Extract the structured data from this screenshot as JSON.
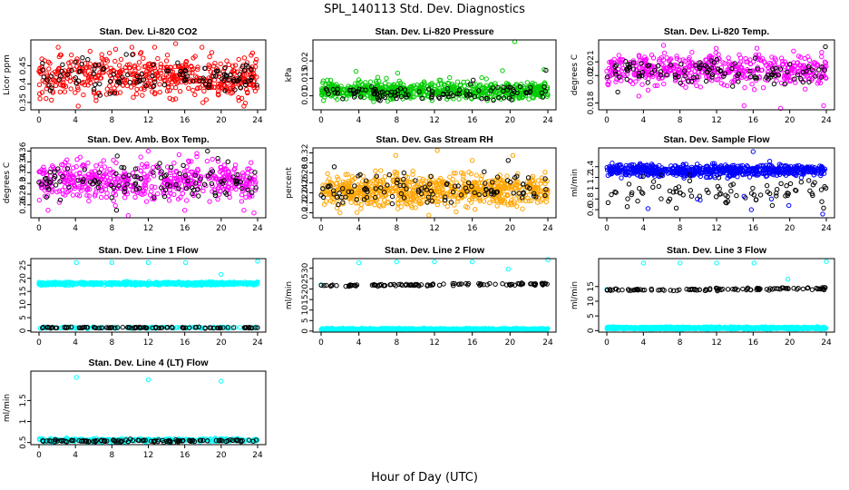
{
  "figure": {
    "title": "SPL_140113  Std. Dev. Diagnostics",
    "x_axis_label": "Hour of Day (UTC)"
  },
  "colors": {
    "red": "#ff0000",
    "green": "#00cc00",
    "magenta": "#ff00ff",
    "orange": "#ffa500",
    "blue": "#0000ff",
    "cyan": "#00ffff",
    "black": "#000000"
  },
  "chart_data": [
    {
      "type": "scatter",
      "title": "Stan. Dev. Li-820 CO2",
      "ylabel": "Licor ppm",
      "xlim": [
        0,
        24
      ],
      "xticks": [
        0,
        4,
        8,
        12,
        16,
        20,
        24
      ],
      "ylim": [
        0.33,
        0.52
      ],
      "yticks": [
        0.35,
        0.4,
        0.45
      ],
      "series": [
        {
          "color": "red",
          "cloud": {
            "count": 520,
            "center": 0.42,
            "spread": 0.035
          },
          "points": [
            [
              2.1,
              0.5
            ],
            [
              4.3,
              0.34
            ],
            [
              10.2,
              0.5
            ],
            [
              12.7,
              0.5
            ],
            [
              15.0,
              0.51
            ],
            [
              17.9,
              0.5
            ],
            [
              22.5,
              0.34
            ]
          ]
        },
        {
          "color": "black",
          "cloud": {
            "count": 110,
            "center": 0.42,
            "spread": 0.03
          }
        }
      ]
    },
    {
      "type": "scatter",
      "title": "Stan. Dev. Li-820 Pressure",
      "ylabel": "kPa",
      "xlim": [
        0,
        24
      ],
      "xticks": [
        0,
        4,
        8,
        12,
        16,
        20,
        24
      ],
      "ylim": [
        0.006,
        0.026
      ],
      "yticks": [
        0.01,
        0.015,
        0.02
      ],
      "series": [
        {
          "color": "green",
          "cloud": {
            "count": 650,
            "center": 0.0115,
            "spread": 0.0015
          },
          "points": [
            [
              1.0,
              0.0145
            ],
            [
              3.7,
              0.017
            ],
            [
              8.1,
              0.0165
            ],
            [
              12.5,
              0.0145
            ],
            [
              13.6,
              0.0152
            ],
            [
              19.2,
              0.0172
            ],
            [
              20.5,
              0.0255
            ],
            [
              23.6,
              0.0175
            ],
            [
              6.0,
              0.0153
            ],
            [
              17.0,
              0.0152
            ]
          ]
        },
        {
          "color": "black",
          "cloud": {
            "count": 110,
            "center": 0.011,
            "spread": 0.0012
          },
          "points": [
            [
              23.8,
              0.0173
            ],
            [
              16.1,
              0.0145
            ]
          ]
        }
      ]
    },
    {
      "type": "scatter",
      "title": "Stan. Dev. Li-820 Temp.",
      "ylabel": "degrees C",
      "xlim": [
        0,
        24
      ],
      "xticks": [
        0,
        4,
        8,
        12,
        16,
        20,
        24
      ],
      "ylim": [
        0.0175,
        0.0226
      ],
      "yticks": [
        0.018,
        0.02,
        0.021
      ],
      "series": [
        {
          "color": "magenta",
          "cloud": {
            "count": 520,
            "center": 0.0204,
            "spread": 0.0007
          },
          "points": [
            [
              6.2,
              0.0222
            ],
            [
              9.3,
              0.0217
            ],
            [
              15.0,
              0.0178
            ],
            [
              19.0,
              0.0176
            ],
            [
              23.7,
              0.0178
            ],
            [
              3.5,
              0.0185
            ]
          ]
        },
        {
          "color": "black",
          "cloud": {
            "count": 110,
            "center": 0.0203,
            "spread": 0.0006
          },
          "points": [
            [
              23.9,
              0.0221
            ],
            [
              1.2,
              0.0188
            ]
          ]
        }
      ]
    },
    {
      "type": "scatter",
      "title": "Stan. Dev. Amb. Box Temp.",
      "ylabel": "degrees C",
      "xlim": [
        0,
        24
      ],
      "xticks": [
        0,
        4,
        8,
        12,
        16,
        20,
        24
      ],
      "ylim": [
        0.236,
        0.366
      ],
      "yticks": [
        0.26,
        0.28,
        0.3,
        0.32,
        0.34,
        0.36
      ],
      "series": [
        {
          "color": "magenta",
          "cloud": {
            "count": 520,
            "center": 0.305,
            "spread": 0.022
          },
          "points": [
            [
              1.0,
              0.25
            ],
            [
              9.8,
              0.24
            ],
            [
              12.0,
              0.36
            ],
            [
              16.0,
              0.25
            ],
            [
              22.5,
              0.25
            ],
            [
              23.6,
              0.245
            ]
          ]
        },
        {
          "color": "black",
          "cloud": {
            "count": 110,
            "center": 0.303,
            "spread": 0.02
          },
          "points": [
            [
              8.5,
              0.25
            ],
            [
              18.5,
              0.36
            ]
          ]
        }
      ]
    },
    {
      "type": "scatter",
      "title": "Stan. Dev. Gas Stream RH",
      "ylabel": "percent",
      "xlim": [
        0,
        24
      ],
      "xticks": [
        0,
        4,
        8,
        12,
        16,
        20,
        24
      ],
      "ylim": [
        0.19,
        0.33
      ],
      "yticks": [
        0.2,
        0.22,
        0.24,
        0.26,
        0.28,
        0.3,
        0.32
      ],
      "series": [
        {
          "color": "orange",
          "cloud": {
            "count": 700,
            "center": 0.245,
            "spread": 0.02
          },
          "points": [
            [
              7.9,
              0.315
            ],
            [
              12.3,
              0.325
            ],
            [
              16.0,
              0.305
            ],
            [
              20.3,
              0.315
            ],
            [
              2.0,
              0.2
            ],
            [
              11.4,
              0.195
            ]
          ]
        },
        {
          "color": "black",
          "cloud": {
            "count": 110,
            "center": 0.25,
            "spread": 0.018
          },
          "points": [
            [
              19.8,
              0.305
            ],
            [
              23.7,
              0.235
            ]
          ]
        }
      ]
    },
    {
      "type": "scatter",
      "title": "Stan. Dev. Sample Flow",
      "ylabel": "ml/min",
      "xlim": [
        0,
        24
      ],
      "xticks": [
        0,
        4,
        8,
        12,
        16,
        20,
        24
      ],
      "ylim": [
        0.45,
        1.75
      ],
      "yticks": [
        0.6,
        0.8,
        1.0,
        1.2,
        1.4
      ],
      "series": [
        {
          "color": "blue",
          "cloud": {
            "count": 700,
            "center": 1.33,
            "spread": 0.07
          },
          "points": [
            [
              4.5,
              0.62
            ],
            [
              10.2,
              0.78
            ],
            [
              15.8,
              0.6
            ],
            [
              16.0,
              1.68
            ],
            [
              23.6,
              0.52
            ],
            [
              9.9,
              0.8
            ],
            [
              15.0,
              0.85
            ],
            [
              19.9,
              0.68
            ],
            [
              18.0,
              0.8
            ]
          ]
        },
        {
          "color": "black",
          "cloud": {
            "count": 80,
            "center": 0.95,
            "spread": 0.15
          },
          "points": [
            [
              23.7,
              0.63
            ],
            [
              23.5,
              0.75
            ],
            [
              0.5,
              0.88
            ],
            [
              1.0,
              0.92
            ],
            [
              7.6,
              0.63
            ],
            [
              11.1,
              0.92
            ],
            [
              13.0,
              0.87
            ]
          ]
        }
      ]
    },
    {
      "type": "scatter",
      "title": "Stan. Dev. Line 1 Flow",
      "ylabel": "",
      "xlim": [
        0,
        24
      ],
      "xticks": [
        0,
        4,
        8,
        12,
        16,
        20,
        24
      ],
      "ylim": [
        -0.5,
        27.5
      ],
      "yticks": [
        0,
        5,
        10,
        15,
        20,
        25
      ],
      "series": [
        {
          "color": "cyan",
          "cloud": {
            "count": 650,
            "center": 18.0,
            "spread": 0.35
          },
          "points": [
            [
              4.1,
              26.0
            ],
            [
              8.0,
              26.0
            ],
            [
              12.0,
              26.0
            ],
            [
              16.1,
              26.0
            ],
            [
              20.0,
              21.5
            ],
            [
              24.0,
              26.5
            ]
          ]
        },
        {
          "color": "cyan",
          "cloud": {
            "count": 120,
            "center": 1.2,
            "spread": 0.2
          }
        },
        {
          "color": "black",
          "cloud": {
            "count": 100,
            "center": 1.2,
            "spread": 0.15
          }
        }
      ]
    },
    {
      "type": "scatter",
      "title": "Stan. Dev. Line 2 Flow",
      "ylabel": "ml/min",
      "xlim": [
        0,
        24
      ],
      "xticks": [
        0,
        4,
        8,
        12,
        16,
        20,
        24
      ],
      "ylim": [
        -0.5,
        34.5
      ],
      "yticks": [
        0,
        5,
        10,
        15,
        20,
        25,
        30
      ],
      "series": [
        {
          "color": "cyan",
          "cloud": {
            "count": 700,
            "center": 0.9,
            "spread": 0.25
          },
          "points": [
            [
              4.0,
              32.5
            ],
            [
              8.0,
              33.0
            ],
            [
              12.0,
              33.0
            ],
            [
              16.0,
              33.0
            ],
            [
              19.8,
              29.5
            ],
            [
              24.0,
              34.0
            ],
            [
              0.0,
              22.0
            ]
          ]
        },
        {
          "color": "black",
          "cloud": {
            "count": 110,
            "center": 22.0,
            "trend": [
              -0.3,
              0.5
            ],
            "spread": 0.35
          }
        }
      ]
    },
    {
      "type": "scatter",
      "title": "Stan. Dev. Line 3 Flow",
      "ylabel": "ml/min",
      "xlim": [
        0,
        24
      ],
      "xticks": [
        0,
        4,
        8,
        12,
        16,
        20,
        24
      ],
      "ylim": [
        -0.5,
        24.5
      ],
      "yticks": [
        0,
        5,
        10,
        15
      ],
      "series": [
        {
          "color": "cyan",
          "cloud": {
            "count": 700,
            "center": 0.9,
            "spread": 0.25
          },
          "points": [
            [
              4.0,
              23.0
            ],
            [
              8.0,
              23.0
            ],
            [
              12.0,
              23.0
            ],
            [
              16.1,
              23.0
            ],
            [
              19.8,
              17.5
            ],
            [
              24.0,
              23.5
            ],
            [
              0.0,
              14.0
            ]
          ]
        },
        {
          "color": "black",
          "cloud": {
            "count": 110,
            "center": 14.0,
            "trend": [
              -0.2,
              0.3
            ],
            "spread": 0.25
          }
        }
      ]
    },
    {
      "type": "scatter",
      "title": "Stan. Dev. Line 4 (LT) Flow",
      "ylabel": "ml/min",
      "xlim": [
        0,
        24
      ],
      "xticks": [
        0,
        4,
        8,
        12,
        16,
        20,
        24
      ],
      "ylim": [
        0.45,
        2.2
      ],
      "yticks": [
        0.5,
        1.0,
        1.5
      ],
      "series": [
        {
          "color": "cyan",
          "cloud": {
            "count": 320,
            "center": 0.555,
            "spread": 0.025
          },
          "points": [
            [
              4.1,
              2.05
            ],
            [
              12.0,
              2.0
            ],
            [
              20.0,
              1.96
            ]
          ]
        },
        {
          "color": "black",
          "cloud": {
            "count": 110,
            "center": 0.54,
            "spread": 0.02
          }
        }
      ]
    }
  ]
}
